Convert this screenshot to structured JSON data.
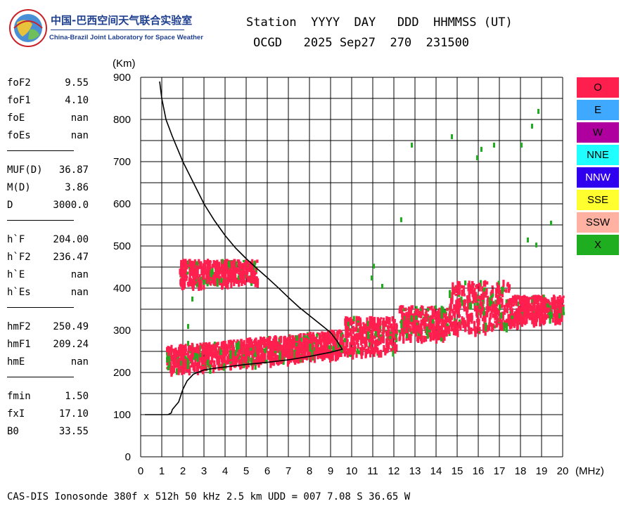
{
  "logo": {
    "name_cn": "中国-巴西空间天气联合实验室",
    "name_en": "China-Brazil Joint Laboratory for Space Weather"
  },
  "header": {
    "line1": "Station  YYYY  DAY   DDD  HHMMSS (UT)",
    "line2": "OCGD   2025 Sep27  270  231500"
  },
  "params": [
    [
      {
        "name": "foF2",
        "value": "9.55"
      },
      {
        "name": "foF1",
        "value": "4.10"
      },
      {
        "name": "foE",
        "value": "nan"
      },
      {
        "name": "foEs",
        "value": "nan"
      }
    ],
    [
      {
        "name": "MUF(D)",
        "value": "36.87"
      },
      {
        "name": "M(D)",
        "value": "3.86"
      },
      {
        "name": "D",
        "value": "3000.0"
      }
    ],
    [
      {
        "name": "h`F",
        "value": "204.00"
      },
      {
        "name": "h`F2",
        "value": "236.47"
      },
      {
        "name": "h`E",
        "value": "nan"
      },
      {
        "name": "h`Es",
        "value": "nan"
      }
    ],
    [
      {
        "name": "hmF2",
        "value": "250.49"
      },
      {
        "name": "hmF1",
        "value": "209.24"
      },
      {
        "name": "hmE",
        "value": "nan"
      }
    ],
    [
      {
        "name": "fmin",
        "value": "1.50"
      },
      {
        "name": "fxI",
        "value": "17.10"
      },
      {
        "name": "B0",
        "value": "33.55"
      }
    ]
  ],
  "footer": "CAS-DIS Ionosonde 380f x 512h 50 kHz 2.5 km UDD = 007 7.08 S 36.65 W",
  "legend": [
    {
      "label": "O",
      "color": "#ff1f4f"
    },
    {
      "label": "E",
      "color": "#3fa9ff"
    },
    {
      "label": "W",
      "color": "#af009f"
    },
    {
      "label": "NNE",
      "color": "#1fffff"
    },
    {
      "label": "NNW",
      "color": "#2f00ef"
    },
    {
      "label": "SSE",
      "color": "#ffff2f"
    },
    {
      "label": "SSW",
      "color": "#ffb2a2"
    },
    {
      "label": "X",
      "color": "#1fae1f"
    }
  ],
  "chart_data": {
    "type": "scatter",
    "xlabel": "(MHz)",
    "ylabel": "(Km)",
    "xlim": [
      0,
      20
    ],
    "ylim": [
      0,
      900
    ],
    "xticks": [
      "0",
      "1",
      "2",
      "3",
      "4",
      "5",
      "6",
      "7",
      "8",
      "9",
      "10",
      "11",
      "12",
      "13",
      "14",
      "15",
      "16",
      "17",
      "18",
      "19",
      "20"
    ],
    "yticks": [
      "0",
      "100",
      "200",
      "300",
      "400",
      "500",
      "600",
      "700",
      "800",
      "900"
    ],
    "grid": true,
    "profile": [
      [
        0.9,
        890
      ],
      [
        1.0,
        850
      ],
      [
        1.2,
        800
      ],
      [
        1.5,
        760
      ],
      [
        2.0,
        700
      ],
      [
        2.5,
        650
      ],
      [
        3.0,
        600
      ],
      [
        3.5,
        560
      ],
      [
        4.0,
        525
      ],
      [
        4.5,
        495
      ],
      [
        5.0,
        470
      ],
      [
        5.5,
        447
      ],
      [
        6.0,
        425
      ],
      [
        6.5,
        402
      ],
      [
        7.0,
        378
      ],
      [
        7.5,
        355
      ],
      [
        8.0,
        335
      ],
      [
        8.5,
        315
      ],
      [
        9.0,
        295
      ],
      [
        9.3,
        275
      ],
      [
        9.55,
        255
      ],
      [
        9.0,
        248
      ],
      [
        8.0,
        238
      ],
      [
        7.0,
        230
      ],
      [
        6.0,
        224
      ],
      [
        5.0,
        219
      ],
      [
        4.0,
        213
      ],
      [
        3.5,
        210
      ],
      [
        3.0,
        206
      ],
      [
        2.5,
        196
      ],
      [
        2.2,
        180
      ],
      [
        2.0,
        160
      ],
      [
        1.8,
        130
      ],
      [
        1.5,
        112
      ],
      [
        1.45,
        104
      ],
      [
        1.3,
        100
      ],
      [
        1.0,
        100
      ],
      [
        0.5,
        100
      ],
      [
        0.2,
        100
      ]
    ],
    "echo_regions": [
      {
        "name": "O",
        "color": "#ff1f4f",
        "x": [
          1.2,
          9.6
        ],
        "y": [
          205,
          305
        ]
      },
      {
        "name": "O",
        "color": "#ff1f4f",
        "x": [
          9.6,
          12.1
        ],
        "y": [
          245,
          335
        ]
      },
      {
        "name": "O",
        "color": "#ff1f4f",
        "x": [
          12.2,
          14.6
        ],
        "y": [
          280,
          360
        ]
      },
      {
        "name": "O",
        "color": "#ff1f4f",
        "x": [
          14.6,
          17.5
        ],
        "y": [
          300,
          420
        ]
      },
      {
        "name": "O",
        "color": "#ff1f4f",
        "x": [
          17.5,
          20
        ],
        "y": [
          320,
          385
        ]
      },
      {
        "name": "O",
        "color": "#ff1f4f",
        "x": [
          1.8,
          5.5
        ],
        "y": [
          410,
          470
        ]
      }
    ],
    "x_points": [
      [
        2.2,
        315
      ],
      [
        2.2,
        275
      ],
      [
        2.4,
        380
      ],
      [
        12.3,
        568
      ],
      [
        12.8,
        745
      ],
      [
        14.7,
        765
      ],
      [
        15.9,
        715
      ],
      [
        16.1,
        735
      ],
      [
        16.7,
        745
      ],
      [
        18.0,
        745
      ],
      [
        18.5,
        790
      ],
      [
        18.8,
        825
      ],
      [
        18.3,
        520
      ],
      [
        18.7,
        508
      ],
      [
        19.4,
        560
      ],
      [
        11.0,
        458
      ],
      [
        11.4,
        410
      ],
      [
        10.9,
        430
      ]
    ]
  }
}
